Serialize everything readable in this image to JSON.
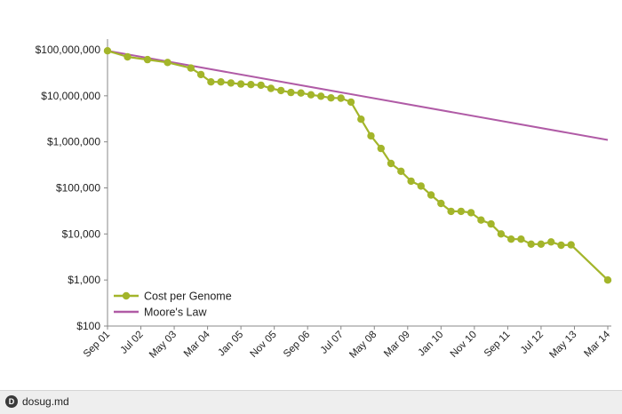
{
  "chart_data": {
    "type": "line",
    "title": "",
    "xlabel": "",
    "ylabel": "",
    "y_scale": "log",
    "ylim": [
      100,
      100000000
    ],
    "y_ticks": [
      "$100,000,000",
      "$10,000,000",
      "$1,000,000",
      "$100,000",
      "$10,000",
      "$1,000",
      "$100"
    ],
    "x_ticks": [
      "Sep 01",
      "Jul 02",
      "May 03",
      "Mar 04",
      "Jan 05",
      "Nov 05",
      "Sep 06",
      "Jul 07",
      "May 08",
      "Mar 09",
      "Jan 10",
      "Nov 10",
      "Sep 11",
      "Jul 12",
      "May 13",
      "Mar 14"
    ],
    "grid": false,
    "legend_position": "bottom-left",
    "series": [
      {
        "name": "Cost per Genome",
        "color": "#a3b52a",
        "marker": "circle",
        "points": [
          {
            "x": "Sep 01",
            "y": 95000000
          },
          {
            "x": "Mar 02",
            "y": 70000000
          },
          {
            "x": "Sep 02",
            "y": 61000000
          },
          {
            "x": "Mar 03",
            "y": 53000000
          },
          {
            "x": "Oct 03",
            "y": 40000000
          },
          {
            "x": "Jan 04",
            "y": 29000000
          },
          {
            "x": "Apr 04",
            "y": 20000000
          },
          {
            "x": "Jul 04",
            "y": 20000000
          },
          {
            "x": "Oct 04",
            "y": 19000000
          },
          {
            "x": "Jan 05",
            "y": 18000000
          },
          {
            "x": "Apr 05",
            "y": 17500000
          },
          {
            "x": "Jul 05",
            "y": 17000000
          },
          {
            "x": "Oct 05",
            "y": 14500000
          },
          {
            "x": "Jan 06",
            "y": 13000000
          },
          {
            "x": "Apr 06",
            "y": 11800000
          },
          {
            "x": "Jul 06",
            "y": 11500000
          },
          {
            "x": "Oct 06",
            "y": 10500000
          },
          {
            "x": "Jan 07",
            "y": 9800000
          },
          {
            "x": "Apr 07",
            "y": 9000000
          },
          {
            "x": "Jul 07",
            "y": 8900000
          },
          {
            "x": "Oct 07",
            "y": 7300000
          },
          {
            "x": "Jan 08",
            "y": 3100000
          },
          {
            "x": "Apr 08",
            "y": 1350000
          },
          {
            "x": "Jul 08",
            "y": 720000
          },
          {
            "x": "Oct 08",
            "y": 340000
          },
          {
            "x": "Jan 09",
            "y": 230000
          },
          {
            "x": "Apr 09",
            "y": 140000
          },
          {
            "x": "Jul 09",
            "y": 110000
          },
          {
            "x": "Oct 09",
            "y": 70000
          },
          {
            "x": "Jan 10",
            "y": 46000
          },
          {
            "x": "Apr 10",
            "y": 31000
          },
          {
            "x": "Jul 10",
            "y": 31000
          },
          {
            "x": "Oct 10",
            "y": 29000
          },
          {
            "x": "Jan 11",
            "y": 20000
          },
          {
            "x": "Apr 11",
            "y": 16500
          },
          {
            "x": "Jul 11",
            "y": 10000
          },
          {
            "x": "Oct 11",
            "y": 7700
          },
          {
            "x": "Jan 12",
            "y": 7700
          },
          {
            "x": "Apr 12",
            "y": 6000
          },
          {
            "x": "Jul 12",
            "y": 6000
          },
          {
            "x": "Oct 12",
            "y": 6700
          },
          {
            "x": "Jan 13",
            "y": 5700
          },
          {
            "x": "Apr 13",
            "y": 5800
          },
          {
            "x": "Mar 14",
            "y": 1000
          }
        ]
      },
      {
        "name": "Moore's Law",
        "color": "#b05ba6",
        "marker": "none",
        "points": [
          {
            "x": "Sep 01",
            "y": 95000000
          },
          {
            "x": "Mar 14",
            "y": 1100000
          }
        ]
      }
    ]
  },
  "watermark": {
    "icon": "dosug-logo-icon",
    "glyph": "D",
    "text": "dosug.md"
  }
}
